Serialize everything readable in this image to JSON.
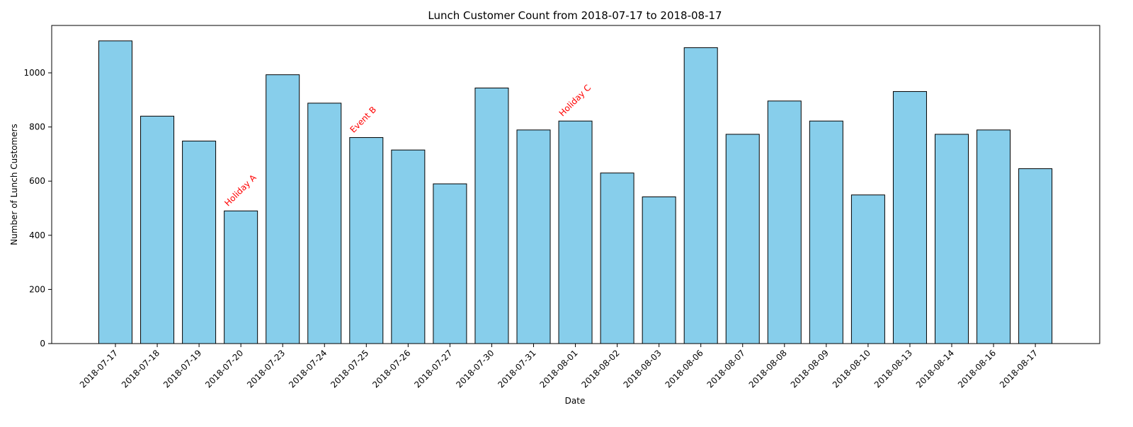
{
  "chart_data": {
    "type": "bar",
    "title": "Lunch Customer Count from 2018-07-17 to 2018-08-17",
    "xlabel": "Date",
    "ylabel": "Number of Lunch Customers",
    "ylim": [
      0,
      1175
    ],
    "yticks": [
      0,
      200,
      400,
      600,
      800,
      1000
    ],
    "grid": false,
    "categories": [
      "2018-07-17",
      "2018-07-18",
      "2018-07-19",
      "2018-07-20",
      "2018-07-23",
      "2018-07-24",
      "2018-07-25",
      "2018-07-26",
      "2018-07-27",
      "2018-07-30",
      "2018-07-31",
      "2018-08-01",
      "2018-08-02",
      "2018-08-03",
      "2018-08-06",
      "2018-08-07",
      "2018-08-08",
      "2018-08-09",
      "2018-08-10",
      "2018-08-13",
      "2018-08-14",
      "2018-08-16",
      "2018-08-17"
    ],
    "values": [
      1118,
      840,
      748,
      490,
      993,
      888,
      761,
      715,
      590,
      944,
      789,
      822,
      630,
      542,
      1093,
      773,
      896,
      822,
      549,
      931,
      773,
      789,
      646
    ],
    "annotations": [
      {
        "category": "2018-07-20",
        "text": "Holiday A"
      },
      {
        "category": "2018-07-25",
        "text": "Event B"
      },
      {
        "category": "2018-08-01",
        "text": "Holiday C"
      }
    ],
    "colors": {
      "bar_fill": "#87ceeb",
      "bar_edge": "#000000",
      "annotation": "#ff0000",
      "axis": "#000000",
      "text": "#000000"
    }
  }
}
